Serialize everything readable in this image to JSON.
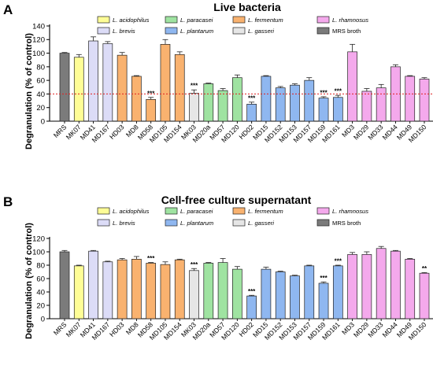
{
  "colors": {
    "MRS broth": "#7b7b7b",
    "L. acidophilus": "#fefd96",
    "L. brevis": "#dcdcf7",
    "L. fermentum": "#f9b26f",
    "L. gasseri": "#e6e6e6",
    "L. paracasei": "#9fe3a1",
    "L. plantarum": "#8fb7f0",
    "L. rhamnosus": "#f4a9ec"
  },
  "chart_data": [
    {
      "panel": "A",
      "type": "bar",
      "title": "Live bacteria",
      "ylabel": "Degranulation (% of control)",
      "ylim": [
        0,
        140
      ],
      "yticks": [
        0,
        20,
        40,
        60,
        80,
        100,
        120,
        140
      ],
      "reference_line": 40,
      "legend": [
        [
          "L. acidophilus",
          "L. paracasei",
          "L. fermentum",
          "L. rhamnosus"
        ],
        [
          "L. brevis",
          "L. plantarum",
          "L. gasseri",
          "MRS broth"
        ]
      ],
      "categories": [
        "MRS",
        "MK07",
        "MD41",
        "MD167",
        "HD03",
        "MD8",
        "MD58",
        "MD105",
        "MD154",
        "MK03",
        "MD20a",
        "MD57",
        "MD120",
        "HD02",
        "MD15",
        "MD152",
        "MD153",
        "MD157",
        "MD159",
        "MD161",
        "MD3",
        "MD29",
        "MD33",
        "MD44",
        "MD49",
        "MD150"
      ],
      "groups": [
        "MRS broth",
        "L. acidophilus",
        "L. brevis",
        "L. brevis",
        "L. fermentum",
        "L. fermentum",
        "L. fermentum",
        "L. fermentum",
        "L. fermentum",
        "L. gasseri",
        "L. paracasei",
        "L. paracasei",
        "L. paracasei",
        "L. plantarum",
        "L. plantarum",
        "L. plantarum",
        "L. plantarum",
        "L. plantarum",
        "L. plantarum",
        "L. plantarum",
        "L. rhamnosus",
        "L. rhamnosus",
        "L. rhamnosus",
        "L. rhamnosus",
        "L. rhamnosus",
        "L. rhamnosus"
      ],
      "values": [
        100,
        94,
        118,
        114,
        97,
        66,
        32,
        113,
        98,
        41,
        55,
        45,
        64,
        25,
        66,
        49,
        53,
        60,
        34,
        35,
        102,
        44,
        49,
        80,
        66,
        62
      ],
      "errors": [
        1,
        4,
        6,
        3,
        4,
        1,
        3,
        7,
        4,
        5,
        1,
        3,
        4,
        3,
        1,
        2,
        2,
        4,
        2,
        3,
        11,
        4,
        5,
        3,
        1,
        2
      ],
      "significance": [
        "",
        "",
        "",
        "",
        "",
        "",
        "***",
        "",
        "",
        "***",
        "",
        "",
        "",
        "***",
        "",
        "",
        "",
        "",
        "***",
        "***",
        "",
        "",
        "",
        "",
        "",
        ""
      ]
    },
    {
      "panel": "B",
      "type": "bar",
      "title": "Cell-free culture supernatant",
      "ylabel": "Degranulation (% of control)",
      "ylim": [
        0,
        120
      ],
      "yticks": [
        0,
        20,
        40,
        60,
        80,
        100,
        120
      ],
      "legend": [
        [
          "L. acidophilus",
          "L. paracasei",
          "L. fermentum",
          "L. rhamnosus"
        ],
        [
          "L. brevis",
          "L. plantarum",
          "L. gasseri",
          "MRS broth"
        ]
      ],
      "categories": [
        "MRS",
        "MK07",
        "MD41",
        "MD167",
        "HD03",
        "MD8",
        "MD58",
        "MD105",
        "MD154",
        "MK03",
        "MD20a",
        "MD57",
        "MD120",
        "HD02",
        "MD15",
        "MD152",
        "MD153",
        "MD157",
        "MD159",
        "MD161",
        "MD3",
        "MD29",
        "MD33",
        "MD44",
        "MD49",
        "MD150"
      ],
      "groups": [
        "MRS broth",
        "L. acidophilus",
        "L. brevis",
        "L. brevis",
        "L. fermentum",
        "L. fermentum",
        "L. fermentum",
        "L. fermentum",
        "L. fermentum",
        "L. gasseri",
        "L. paracasei",
        "L. paracasei",
        "L. paracasei",
        "L. plantarum",
        "L. plantarum",
        "L. plantarum",
        "L. plantarum",
        "L. plantarum",
        "L. plantarum",
        "L. plantarum",
        "L. rhamnosus",
        "L. rhamnosus",
        "L. rhamnosus",
        "L. rhamnosus",
        "L. rhamnosus",
        "L. rhamnosus"
      ],
      "values": [
        100,
        79,
        101,
        85,
        88,
        89,
        83,
        81,
        88,
        72,
        83,
        84,
        74,
        34,
        74,
        70,
        64,
        79,
        53,
        79,
        96,
        96,
        105,
        101,
        89,
        68
      ],
      "errors": [
        2,
        1,
        1,
        1,
        2,
        4,
        1,
        4,
        1,
        3,
        1,
        6,
        4,
        1,
        3,
        1,
        1,
        1,
        2,
        1,
        3,
        4,
        3,
        1,
        1,
        1
      ],
      "significance": [
        "",
        "",
        "",
        "",
        "",
        "",
        "***",
        "",
        "",
        "***",
        "",
        "",
        "",
        "***",
        "",
        "",
        "",
        "",
        "***",
        "***",
        "",
        "",
        "",
        "",
        "",
        "**"
      ]
    }
  ]
}
